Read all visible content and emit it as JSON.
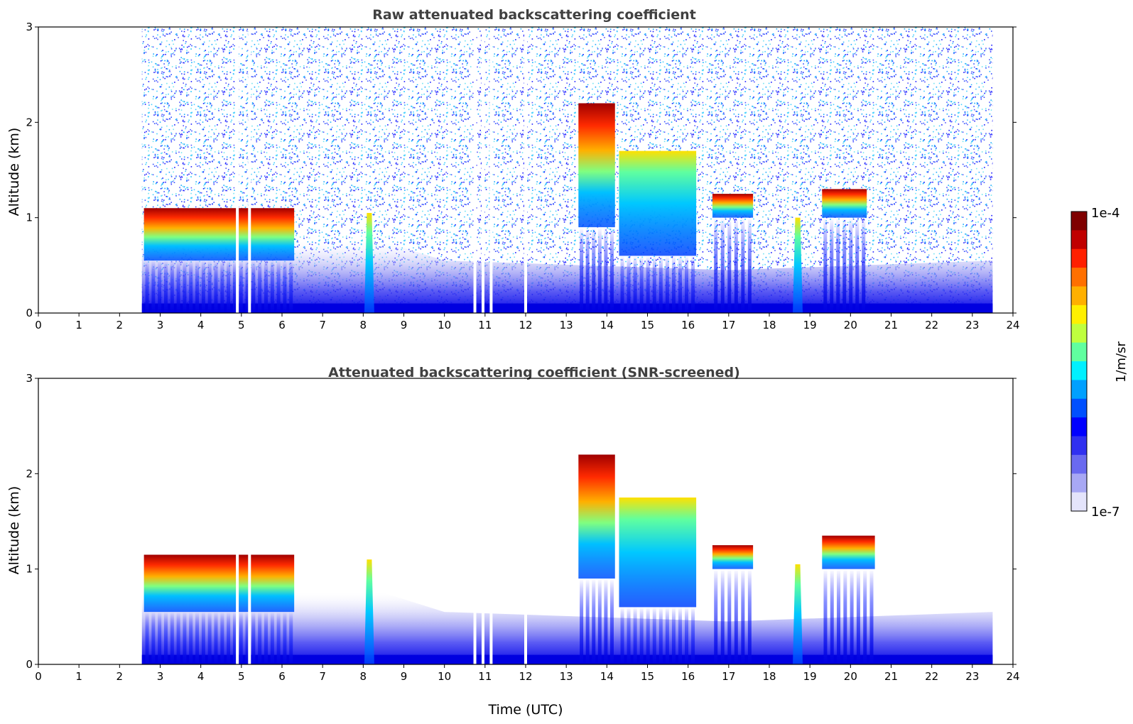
{
  "figure": {
    "xlabel": "Time (UTC)",
    "colorbar": {
      "label": "1/m/sr",
      "max_label": "1e-4",
      "min_label": "1e-7",
      "colors": [
        "#7f0000",
        "#c00000",
        "#ff2000",
        "#ff7000",
        "#ffb000",
        "#fff000",
        "#bfff3f",
        "#60ff9f",
        "#00f0ff",
        "#00a0ff",
        "#0050ff",
        "#0000ff",
        "#3030f0",
        "#6a6af0",
        "#a8a8f4",
        "#e4e4fb"
      ]
    }
  },
  "chart_data": [
    {
      "type": "heatmap",
      "title": "Raw attenuated backscattering coefficient",
      "xlabel": "",
      "ylabel": "Altitude (km)",
      "xlim": [
        0,
        24
      ],
      "ylim": [
        0,
        3
      ],
      "xticks": [
        "0",
        "1",
        "2",
        "3",
        "4",
        "5",
        "6",
        "7",
        "8",
        "9",
        "10",
        "11",
        "12",
        "13",
        "14",
        "15",
        "16",
        "17",
        "18",
        "19",
        "20",
        "21",
        "22",
        "23",
        "24"
      ],
      "yticks": [
        "0",
        "1",
        "2",
        "3"
      ],
      "data_range_hours": [
        2.55,
        23.5
      ],
      "background_noise": true,
      "gaps_hours": [
        4.9,
        5.2,
        10.75,
        10.95,
        11.15,
        12.0
      ],
      "features": [
        {
          "kind": "cloud_layer",
          "t0": 2.6,
          "t1": 6.3,
          "z_bottom_km": 0.55,
          "z_top_km": 1.1,
          "intensity": "high"
        },
        {
          "kind": "plume",
          "t": 8.15,
          "z_top_km": 1.05,
          "intensity": "medium"
        },
        {
          "kind": "cloud_layer",
          "t0": 13.3,
          "t1": 14.2,
          "z_bottom_km": 0.9,
          "z_top_km": 2.2,
          "intensity": "high"
        },
        {
          "kind": "cloud_layer",
          "t0": 14.3,
          "t1": 16.2,
          "z_bottom_km": 0.6,
          "z_top_km": 1.7,
          "intensity": "medium"
        },
        {
          "kind": "cloud_layer",
          "t0": 16.6,
          "t1": 17.6,
          "z_bottom_km": 1.0,
          "z_top_km": 1.25,
          "intensity": "high"
        },
        {
          "kind": "plume",
          "t": 18.7,
          "z_top_km": 1.0,
          "intensity": "medium"
        },
        {
          "kind": "cloud_layer",
          "t0": 19.3,
          "t1": 20.4,
          "z_bottom_km": 1.0,
          "z_top_km": 1.3,
          "intensity": "high"
        }
      ]
    },
    {
      "type": "heatmap",
      "title": "Attenuated backscattering coefficient (SNR-screened)",
      "xlabel": "Time (UTC)",
      "ylabel": "Altitude (km)",
      "xlim": [
        0,
        24
      ],
      "ylim": [
        0,
        3
      ],
      "xticks": [
        "0",
        "1",
        "2",
        "3",
        "4",
        "5",
        "6",
        "7",
        "8",
        "9",
        "10",
        "11",
        "12",
        "13",
        "14",
        "15",
        "16",
        "17",
        "18",
        "19",
        "20",
        "21",
        "22",
        "23",
        "24"
      ],
      "yticks": [
        "0",
        "1",
        "2",
        "3"
      ],
      "data_range_hours": [
        2.55,
        23.5
      ],
      "background_noise": false,
      "gaps_hours": [
        4.9,
        5.2,
        10.75,
        10.95,
        11.15,
        12.0
      ],
      "features": [
        {
          "kind": "cloud_layer",
          "t0": 2.6,
          "t1": 6.3,
          "z_bottom_km": 0.55,
          "z_top_km": 1.15,
          "intensity": "high"
        },
        {
          "kind": "plume",
          "t": 8.15,
          "z_top_km": 1.1,
          "intensity": "medium"
        },
        {
          "kind": "cloud_layer",
          "t0": 13.3,
          "t1": 14.2,
          "z_bottom_km": 0.9,
          "z_top_km": 2.2,
          "intensity": "high"
        },
        {
          "kind": "cloud_layer",
          "t0": 14.3,
          "t1": 16.2,
          "z_bottom_km": 0.6,
          "z_top_km": 1.75,
          "intensity": "medium"
        },
        {
          "kind": "cloud_layer",
          "t0": 16.6,
          "t1": 17.6,
          "z_bottom_km": 1.0,
          "z_top_km": 1.25,
          "intensity": "high"
        },
        {
          "kind": "plume",
          "t": 18.7,
          "z_top_km": 1.05,
          "intensity": "medium"
        },
        {
          "kind": "cloud_layer",
          "t0": 19.3,
          "t1": 20.6,
          "z_bottom_km": 1.0,
          "z_top_km": 1.35,
          "intensity": "high"
        }
      ]
    }
  ]
}
